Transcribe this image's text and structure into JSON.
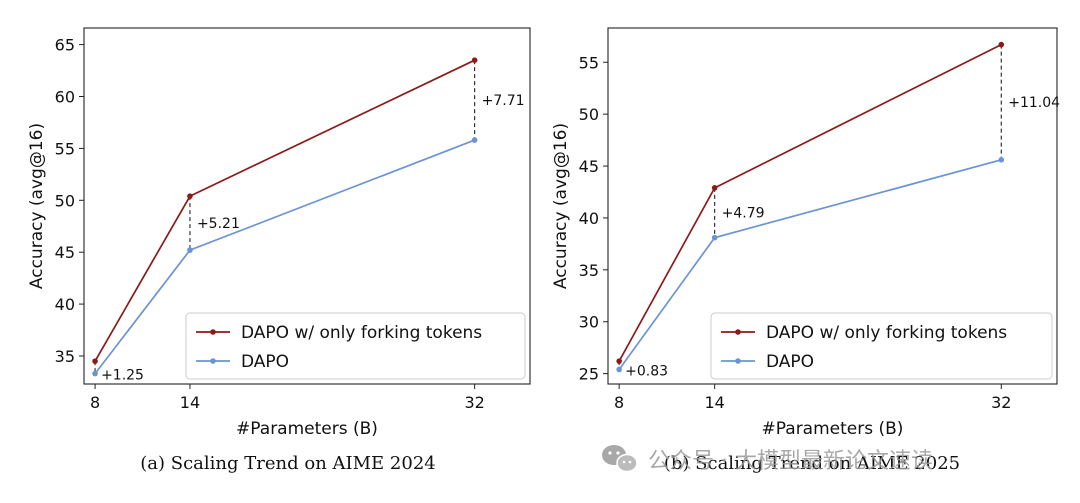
{
  "chart_data": [
    {
      "type": "line",
      "caption": "(a) Scaling Trend on AIME 2024",
      "xlabel": "#Parameters (B)",
      "ylabel": "Accuracy (avg@16)",
      "x": [
        8,
        14,
        32
      ],
      "xticks": [
        8,
        14,
        32
      ],
      "xlim": [
        7.3,
        35.5
      ],
      "yticks": [
        35,
        40,
        45,
        50,
        55,
        60,
        65
      ],
      "ylim": [
        32.3,
        66.6
      ],
      "series": [
        {
          "name": "DAPO w/ only forking tokens",
          "color": "#8b1a1a",
          "values": [
            34.5,
            50.4,
            63.5
          ]
        },
        {
          "name": "DAPO",
          "color": "#6a94d4",
          "values": [
            33.3,
            45.2,
            55.8
          ]
        }
      ],
      "annotations": [
        "+1.25",
        "+5.21",
        "+7.71"
      ],
      "legend": "lower-right"
    },
    {
      "type": "line",
      "caption": "(b) Scaling Trend on AIME 2025",
      "xlabel": "#Parameters (B)",
      "ylabel": "Accuracy (avg@16)",
      "x": [
        8,
        14,
        32
      ],
      "xticks": [
        8,
        14,
        32
      ],
      "xlim": [
        7.3,
        35.5
      ],
      "yticks": [
        25,
        30,
        35,
        40,
        45,
        50,
        55
      ],
      "ylim": [
        24.0,
        58.3
      ],
      "series": [
        {
          "name": "DAPO w/ only forking tokens",
          "color": "#8b1a1a",
          "values": [
            26.2,
            42.9,
            56.7
          ]
        },
        {
          "name": "DAPO",
          "color": "#6a94d4",
          "values": [
            25.4,
            38.1,
            45.6
          ]
        }
      ],
      "annotations": [
        "+0.83",
        "+4.79",
        "+11.04"
      ],
      "legend": "lower-right"
    }
  ],
  "watermark": "公众号 · 大模型最新论文速读"
}
